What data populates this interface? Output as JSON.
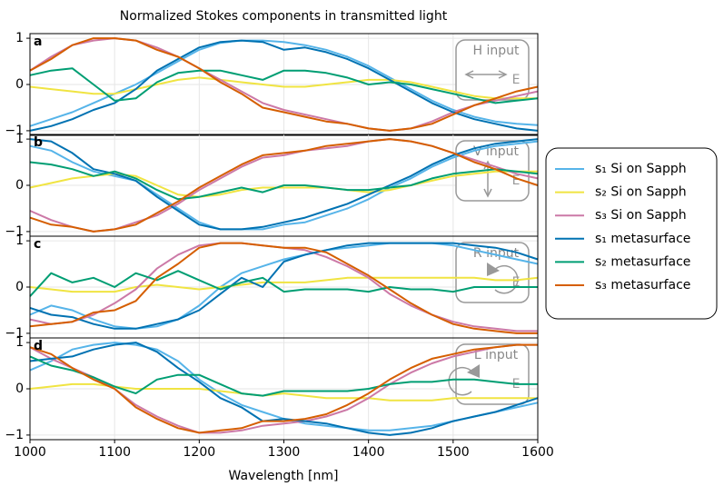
{
  "title": "Normalized Stokes components in transmitted light",
  "xlabel": "Wavelength [nm]",
  "chart_data": [
    {
      "type": "line",
      "panel_label": "a",
      "input_label": "H input",
      "field_label": "E",
      "x": [
        1000,
        1025,
        1050,
        1075,
        1100,
        1125,
        1150,
        1175,
        1200,
        1225,
        1250,
        1275,
        1300,
        1325,
        1350,
        1375,
        1400,
        1425,
        1450,
        1475,
        1500,
        1525,
        1550,
        1575,
        1600
      ],
      "xlim": [
        1000,
        1600
      ],
      "xticks": [
        1000,
        1100,
        1200,
        1300,
        1400,
        1500,
        1600
      ],
      "ylim": [
        -1.1,
        1.1
      ],
      "yticks": [
        {
          "value": -1,
          "label": "−1"
        },
        0,
        1
      ],
      "grid": true,
      "series": [
        {
          "name": "s₁ Si on Sapph",
          "color": "#56b4e9",
          "values": [
            -0.9,
            -0.75,
            -0.6,
            -0.4,
            -0.2,
            0.0,
            0.25,
            0.5,
            0.75,
            0.9,
            0.95,
            0.95,
            0.92,
            0.85,
            0.75,
            0.6,
            0.4,
            0.15,
            -0.1,
            -0.35,
            -0.55,
            -0.7,
            -0.8,
            -0.85,
            -0.88
          ]
        },
        {
          "name": "s₂ Si on Sapph",
          "color": "#f0e442",
          "values": [
            -0.05,
            -0.1,
            -0.15,
            -0.2,
            -0.2,
            -0.1,
            0.0,
            0.1,
            0.15,
            0.1,
            0.05,
            0.0,
            -0.05,
            -0.05,
            0.0,
            0.05,
            0.1,
            0.1,
            0.05,
            -0.05,
            -0.15,
            -0.25,
            -0.3,
            -0.3,
            -0.3
          ]
        },
        {
          "name": "s₃ Si on Sapph",
          "color": "#cc79a7",
          "values": [
            0.3,
            0.6,
            0.85,
            0.95,
            1.0,
            0.95,
            0.8,
            0.6,
            0.35,
            0.1,
            -0.15,
            -0.4,
            -0.55,
            -0.65,
            -0.75,
            -0.85,
            -0.95,
            -1.0,
            -0.95,
            -0.8,
            -0.6,
            -0.45,
            -0.35,
            -0.25,
            -0.15
          ]
        },
        {
          "name": "s₁ metasurface",
          "color": "#0072b2",
          "values": [
            -1.0,
            -0.9,
            -0.75,
            -0.55,
            -0.4,
            -0.1,
            0.3,
            0.55,
            0.8,
            0.92,
            0.95,
            0.92,
            0.75,
            0.8,
            0.7,
            0.55,
            0.35,
            0.1,
            -0.15,
            -0.4,
            -0.6,
            -0.75,
            -0.85,
            -0.95,
            -1.0
          ]
        },
        {
          "name": "s₂ metasurface",
          "color": "#009e73",
          "values": [
            0.2,
            0.3,
            0.35,
            0.0,
            -0.35,
            -0.3,
            0.05,
            0.25,
            0.3,
            0.3,
            0.2,
            0.1,
            0.3,
            0.3,
            0.25,
            0.15,
            0.0,
            0.05,
            0.0,
            -0.1,
            -0.2,
            -0.3,
            -0.4,
            -0.35,
            -0.3
          ]
        },
        {
          "name": "s₃ metasurface",
          "color": "#d55e00",
          "values": [
            0.3,
            0.55,
            0.85,
            1.0,
            1.0,
            0.95,
            0.75,
            0.6,
            0.35,
            0.05,
            -0.2,
            -0.5,
            -0.6,
            -0.7,
            -0.8,
            -0.85,
            -0.95,
            -1.0,
            -0.95,
            -0.85,
            -0.65,
            -0.45,
            -0.3,
            -0.15,
            -0.05
          ]
        }
      ]
    },
    {
      "type": "line",
      "panel_label": "b",
      "input_label": "V input",
      "field_label": "E",
      "x": [
        1000,
        1025,
        1050,
        1075,
        1100,
        1125,
        1150,
        1175,
        1200,
        1225,
        1250,
        1275,
        1300,
        1325,
        1350,
        1375,
        1400,
        1425,
        1450,
        1475,
        1500,
        1525,
        1550,
        1575,
        1600
      ],
      "xlim": [
        1000,
        1600
      ],
      "xticks": [
        1000,
        1100,
        1200,
        1300,
        1400,
        1500,
        1600
      ],
      "ylim": [
        -1.1,
        1.1
      ],
      "yticks": [
        {
          "value": -1,
          "label": "−1"
        },
        0,
        1
      ],
      "grid": true,
      "series": [
        {
          "values": [
            0.85,
            0.75,
            0.5,
            0.3,
            0.2,
            0.1,
            -0.2,
            -0.5,
            -0.8,
            -0.95,
            -0.95,
            -0.95,
            -0.85,
            -0.8,
            -0.65,
            -0.5,
            -0.3,
            -0.05,
            0.15,
            0.4,
            0.6,
            0.75,
            0.85,
            0.9,
            0.95
          ]
        },
        {
          "values": [
            -0.05,
            0.05,
            0.15,
            0.2,
            0.25,
            0.2,
            0.0,
            -0.2,
            -0.25,
            -0.2,
            -0.1,
            -0.05,
            -0.05,
            -0.05,
            -0.05,
            -0.1,
            -0.15,
            -0.1,
            0.0,
            0.1,
            0.2,
            0.25,
            0.3,
            0.3,
            0.3
          ]
        },
        {
          "values": [
            -0.55,
            -0.75,
            -0.9,
            -1.0,
            -0.95,
            -0.8,
            -0.65,
            -0.4,
            -0.1,
            0.15,
            0.4,
            0.6,
            0.65,
            0.75,
            0.8,
            0.85,
            0.95,
            1.0,
            0.95,
            0.85,
            0.7,
            0.55,
            0.4,
            0.25,
            0.15
          ]
        },
        {
          "values": [
            1.0,
            0.95,
            0.7,
            0.35,
            0.25,
            0.1,
            -0.25,
            -0.55,
            -0.85,
            -0.95,
            -0.95,
            -0.9,
            -0.8,
            -0.7,
            -0.55,
            -0.4,
            -0.2,
            0.0,
            0.2,
            0.45,
            0.65,
            0.8,
            0.9,
            0.95,
            1.0
          ]
        },
        {
          "values": [
            0.5,
            0.45,
            0.35,
            0.2,
            0.3,
            0.15,
            -0.1,
            -0.3,
            -0.25,
            -0.15,
            -0.05,
            -0.15,
            0.0,
            0.0,
            -0.05,
            -0.1,
            -0.1,
            -0.05,
            0.0,
            0.15,
            0.25,
            0.3,
            0.35,
            0.3,
            0.25
          ]
        },
        {
          "values": [
            -0.7,
            -0.85,
            -0.9,
            -1.0,
            -0.95,
            -0.85,
            -0.6,
            -0.35,
            -0.05,
            0.2,
            0.45,
            0.65,
            0.7,
            0.75,
            0.85,
            0.9,
            0.95,
            1.0,
            0.95,
            0.85,
            0.7,
            0.5,
            0.35,
            0.15,
            0.0
          ]
        }
      ]
    },
    {
      "type": "line",
      "panel_label": "c",
      "input_label": "R input",
      "field_label": "E",
      "x": [
        1000,
        1025,
        1050,
        1075,
        1100,
        1125,
        1150,
        1175,
        1200,
        1225,
        1250,
        1275,
        1300,
        1325,
        1350,
        1375,
        1400,
        1425,
        1450,
        1475,
        1500,
        1525,
        1550,
        1575,
        1600
      ],
      "xlim": [
        1000,
        1600
      ],
      "xticks": [
        1000,
        1100,
        1200,
        1300,
        1400,
        1500,
        1600
      ],
      "ylim": [
        -1.1,
        1.1
      ],
      "yticks": [
        {
          "value": -1,
          "label": "−1"
        },
        0,
        1
      ],
      "grid": true,
      "series": [
        {
          "values": [
            -0.6,
            -0.4,
            -0.5,
            -0.7,
            -0.85,
            -0.9,
            -0.85,
            -0.7,
            -0.4,
            0.0,
            0.3,
            0.45,
            0.6,
            0.7,
            0.8,
            0.85,
            0.9,
            0.95,
            0.95,
            0.95,
            0.9,
            0.8,
            0.7,
            0.6,
            0.5
          ]
        },
        {
          "values": [
            0.0,
            -0.05,
            -0.1,
            -0.1,
            -0.1,
            0.0,
            0.05,
            0.0,
            -0.05,
            0.0,
            0.05,
            0.1,
            0.1,
            0.1,
            0.15,
            0.2,
            0.2,
            0.2,
            0.2,
            0.2,
            0.2,
            0.2,
            0.15,
            0.15,
            0.2
          ]
        },
        {
          "values": [
            -0.7,
            -0.8,
            -0.75,
            -0.6,
            -0.35,
            -0.05,
            0.4,
            0.7,
            0.9,
            0.95,
            0.95,
            0.9,
            0.85,
            0.8,
            0.65,
            0.45,
            0.2,
            -0.15,
            -0.4,
            -0.6,
            -0.75,
            -0.85,
            -0.9,
            -0.95,
            -0.95
          ]
        },
        {
          "values": [
            -0.45,
            -0.6,
            -0.65,
            -0.8,
            -0.9,
            -0.9,
            -0.8,
            -0.7,
            -0.5,
            -0.15,
            0.2,
            0.0,
            0.55,
            0.7,
            0.8,
            0.9,
            0.95,
            0.95,
            0.95,
            0.95,
            0.95,
            0.9,
            0.85,
            0.75,
            0.6
          ]
        },
        {
          "values": [
            -0.2,
            0.3,
            0.1,
            0.2,
            0.0,
            0.3,
            0.15,
            0.35,
            0.15,
            -0.05,
            0.1,
            0.2,
            -0.1,
            -0.05,
            -0.05,
            -0.05,
            -0.1,
            0.0,
            -0.05,
            -0.05,
            -0.1,
            0.0,
            0.0,
            0.0,
            0.0
          ]
        },
        {
          "values": [
            -0.85,
            -0.8,
            -0.75,
            -0.55,
            -0.5,
            -0.3,
            0.2,
            0.5,
            0.85,
            0.95,
            0.95,
            0.9,
            0.85,
            0.85,
            0.75,
            0.5,
            0.25,
            -0.05,
            -0.35,
            -0.6,
            -0.8,
            -0.9,
            -0.95,
            -1.0,
            -1.0
          ]
        }
      ]
    },
    {
      "type": "line",
      "panel_label": "d",
      "input_label": "L input",
      "field_label": "E",
      "x": [
        1000,
        1025,
        1050,
        1075,
        1100,
        1125,
        1150,
        1175,
        1200,
        1225,
        1250,
        1275,
        1300,
        1325,
        1350,
        1375,
        1400,
        1425,
        1450,
        1475,
        1500,
        1525,
        1550,
        1575,
        1600
      ],
      "xlim": [
        1000,
        1600
      ],
      "xticks": [
        1000,
        1100,
        1200,
        1300,
        1400,
        1500,
        1600
      ],
      "ylim": [
        -1.1,
        1.1
      ],
      "yticks": [
        {
          "value": -1,
          "label": "−1"
        },
        0,
        1
      ],
      "grid": true,
      "series": [
        {
          "values": [
            0.4,
            0.6,
            0.85,
            0.95,
            1.0,
            0.95,
            0.85,
            0.6,
            0.2,
            -0.1,
            -0.35,
            -0.5,
            -0.65,
            -0.75,
            -0.8,
            -0.85,
            -0.9,
            -0.9,
            -0.85,
            -0.8,
            -0.7,
            -0.6,
            -0.5,
            -0.4,
            -0.3
          ]
        },
        {
          "values": [
            0.0,
            0.05,
            0.1,
            0.1,
            0.05,
            0.0,
            0.0,
            0.0,
            0.0,
            -0.05,
            -0.1,
            -0.15,
            -0.1,
            -0.15,
            -0.2,
            -0.2,
            -0.2,
            -0.25,
            -0.25,
            -0.25,
            -0.2,
            -0.2,
            -0.2,
            -0.2,
            -0.2
          ]
        },
        {
          "values": [
            0.9,
            0.65,
            0.45,
            0.25,
            0.0,
            -0.35,
            -0.6,
            -0.8,
            -0.95,
            -0.95,
            -0.9,
            -0.8,
            -0.75,
            -0.7,
            -0.6,
            -0.45,
            -0.2,
            0.1,
            0.35,
            0.55,
            0.7,
            0.8,
            0.9,
            0.95,
            0.95
          ]
        },
        {
          "values": [
            0.6,
            0.65,
            0.7,
            0.85,
            0.95,
            1.0,
            0.8,
            0.45,
            0.15,
            -0.2,
            -0.4,
            -0.7,
            -0.65,
            -0.7,
            -0.75,
            -0.85,
            -0.95,
            -1.0,
            -0.95,
            -0.85,
            -0.7,
            -0.6,
            -0.5,
            -0.35,
            -0.2
          ]
        },
        {
          "values": [
            0.7,
            0.5,
            0.4,
            0.25,
            0.05,
            -0.1,
            0.2,
            0.3,
            0.3,
            0.1,
            -0.1,
            -0.15,
            -0.05,
            -0.05,
            -0.05,
            -0.05,
            0.0,
            0.1,
            0.15,
            0.15,
            0.2,
            0.2,
            0.15,
            0.1,
            0.1
          ]
        },
        {
          "values": [
            0.9,
            0.75,
            0.45,
            0.2,
            0.0,
            -0.4,
            -0.65,
            -0.85,
            -0.95,
            -0.9,
            -0.85,
            -0.7,
            -0.7,
            -0.65,
            -0.55,
            -0.35,
            -0.1,
            0.2,
            0.45,
            0.65,
            0.75,
            0.85,
            0.9,
            0.95,
            0.95
          ]
        }
      ]
    }
  ]
}
